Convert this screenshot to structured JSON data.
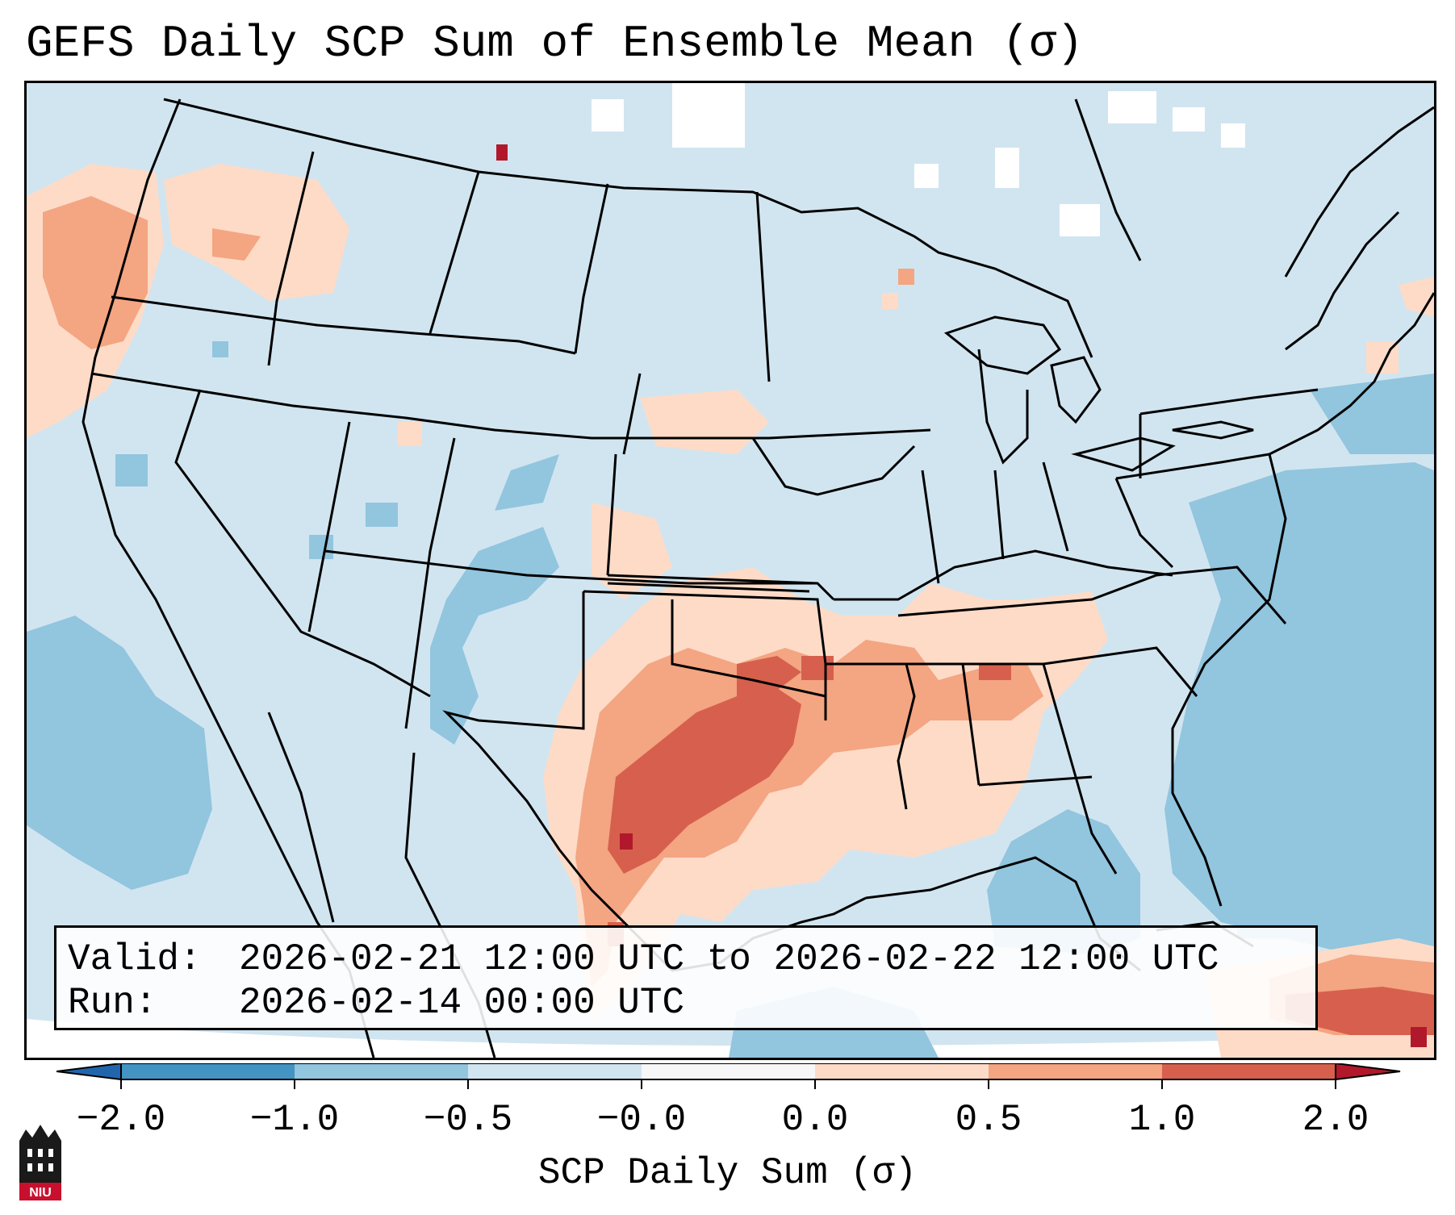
{
  "title": "GEFS Daily SCP Sum of Ensemble Mean (σ)",
  "info": {
    "valid_label": "Valid:",
    "valid_value": "2026-02-21 12:00 UTC to 2026-02-22 12:00 UTC",
    "run_label": "Run:",
    "run_value": "2026-02-14 00:00 UTC"
  },
  "colorbar": {
    "label": "SCP Daily Sum (σ)",
    "ticks": [
      "−2.0",
      "−1.0",
      "−0.5",
      "−0.0",
      "0.0",
      "0.5",
      "1.0",
      "2.0"
    ],
    "colors": {
      "below": "#2166ac",
      "lt_neg1": "#4393c3",
      "neg1_neg05": "#92c5de",
      "neg05_0": "#d1e5f0",
      "zero": "#f7f7f7",
      "pos0_05": "#fddbc7",
      "pos05_1": "#f4a582",
      "pos1_2": "#d6604d",
      "above": "#b2182b"
    }
  },
  "logo": {
    "text": "NIU"
  },
  "map_colors": {
    "background": "#d1e5f0",
    "neg_strong": "#92c5de",
    "pos_light": "#fddbc7",
    "pos_mid": "#f4a582",
    "pos_high": "#d6604d",
    "pos_max": "#b2182b",
    "null": "#ffffff"
  }
}
